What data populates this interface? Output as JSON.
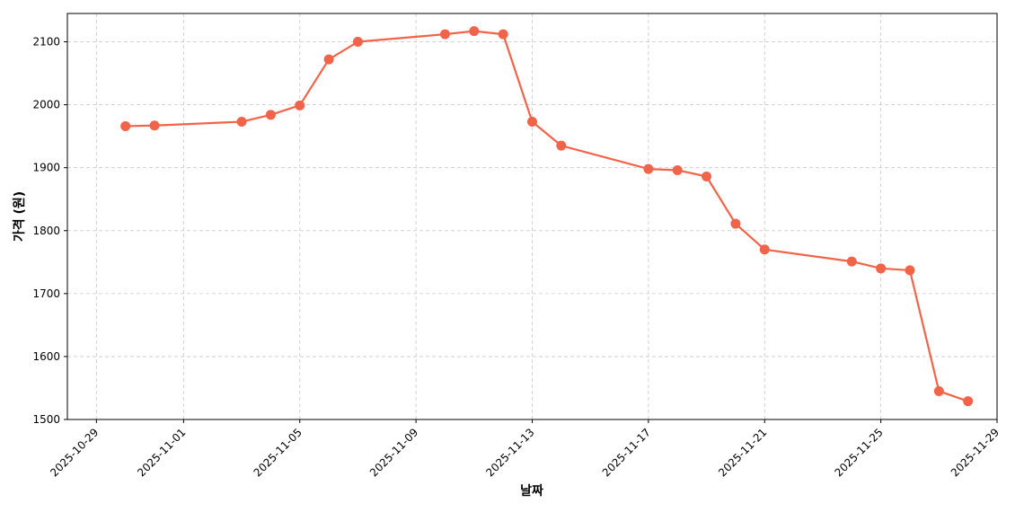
{
  "chart_data": {
    "type": "line",
    "title": "",
    "xlabel": "날짜",
    "ylabel": "가격 (원)",
    "x_ticks": [
      "2025-10-29",
      "2025-11-01",
      "2025-11-05",
      "2025-11-09",
      "2025-11-13",
      "2025-11-17",
      "2025-11-21",
      "2025-11-25",
      "2025-11-29"
    ],
    "y_ticks": [
      1500,
      1600,
      1700,
      1800,
      1900,
      2000,
      2100
    ],
    "xlim": [
      "2025-10-28",
      "2025-11-29"
    ],
    "ylim": [
      1500,
      2145
    ],
    "grid": true,
    "color": "#F26449",
    "series": [
      {
        "name": "",
        "x": [
          "2025-10-30",
          "2025-10-31",
          "2025-11-03",
          "2025-11-04",
          "2025-11-05",
          "2025-11-06",
          "2025-11-07",
          "2025-11-10",
          "2025-11-11",
          "2025-11-12",
          "2025-11-13",
          "2025-11-14",
          "2025-11-17",
          "2025-11-18",
          "2025-11-19",
          "2025-11-20",
          "2025-11-21",
          "2025-11-24",
          "2025-11-25",
          "2025-11-26",
          "2025-11-27",
          "2025-11-28"
        ],
        "y": [
          1966,
          1967,
          1973,
          1984,
          1999,
          2072,
          2100,
          2112,
          2117,
          2112,
          1973,
          1935,
          1898,
          1896,
          1886,
          1811,
          1770,
          1751,
          1740,
          1737,
          1545,
          1529
        ]
      }
    ]
  }
}
